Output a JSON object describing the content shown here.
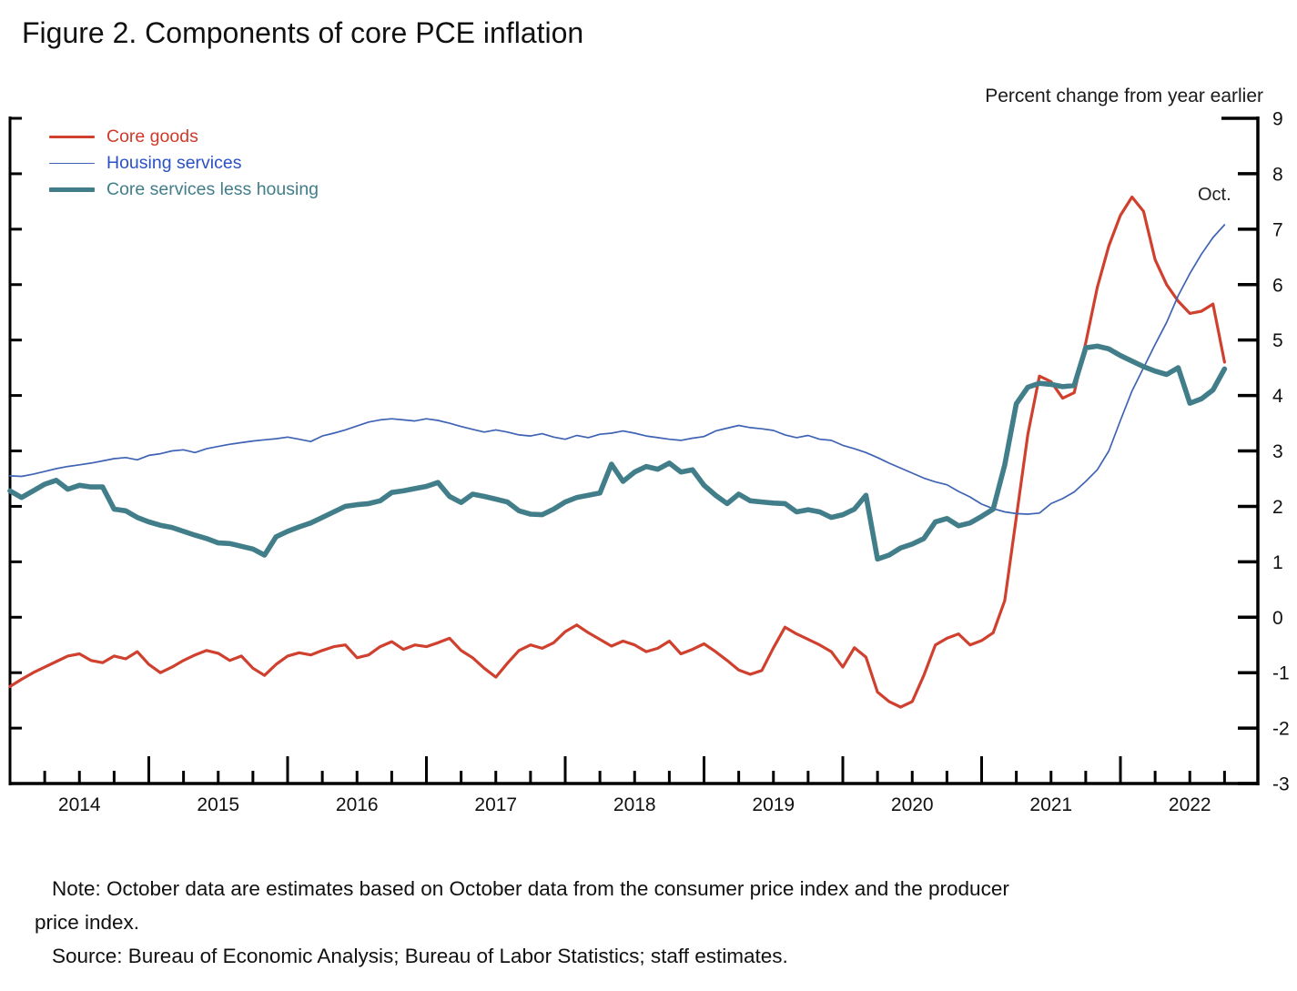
{
  "title": "Figure 2. Components of core PCE inflation",
  "axis_caption": "Percent change from year earlier",
  "annotation": {
    "oct_label": "Oct."
  },
  "legend": {
    "items": [
      {
        "label": "Core goods",
        "text_color": "#cf3a2a",
        "line_color": "#d0402e",
        "line_weight": 3.2
      },
      {
        "label": "Housing services",
        "text_color": "#2b50c4",
        "line_color": "#3e63b4",
        "line_weight": 1.7
      },
      {
        "label": "Core services less housing",
        "text_color": "#417e8a",
        "line_color": "#417e8a",
        "line_weight": 5.6
      }
    ]
  },
  "notes": {
    "note_line1": "Note: October data are estimates based on October data from the consumer price index and the producer",
    "note_line2": "price index.",
    "source_line": "Source: Bureau of Economic Analysis; Bureau of Labor Statistics; staff estimates."
  },
  "chart_data": {
    "type": "line",
    "x_unit": "monthly",
    "x_start": "2014-01",
    "x_end": "2022-10",
    "x_tick_years": [
      2014,
      2015,
      2016,
      2017,
      2018,
      2019,
      2020,
      2021,
      2022
    ],
    "y_ticks": [
      9,
      8,
      7,
      6,
      5,
      4,
      3,
      2,
      1,
      0,
      -1,
      -2,
      -3
    ],
    "ylim": [
      -3,
      9
    ],
    "grid": false,
    "legend_position": "top-left-inside",
    "last_point_label": "Oct.",
    "series": [
      {
        "name": "Core goods",
        "color": "#d0402e",
        "width": 3.2,
        "values": [
          -1.25,
          -1.12,
          -1.0,
          -0.9,
          -0.8,
          -0.7,
          -0.66,
          -0.78,
          -0.82,
          -0.7,
          -0.75,
          -0.62,
          -0.85,
          -1.0,
          -0.9,
          -0.78,
          -0.68,
          -0.6,
          -0.65,
          -0.78,
          -0.7,
          -0.92,
          -1.05,
          -0.85,
          -0.7,
          -0.64,
          -0.68,
          -0.6,
          -0.53,
          -0.5,
          -0.73,
          -0.68,
          -0.53,
          -0.44,
          -0.58,
          -0.5,
          -0.53,
          -0.46,
          -0.38,
          -0.6,
          -0.73,
          -0.92,
          -1.08,
          -0.83,
          -0.6,
          -0.5,
          -0.56,
          -0.46,
          -0.26,
          -0.14,
          -0.28,
          -0.4,
          -0.52,
          -0.43,
          -0.5,
          -0.62,
          -0.56,
          -0.43,
          -0.66,
          -0.58,
          -0.48,
          -0.62,
          -0.78,
          -0.95,
          -1.03,
          -0.96,
          -0.55,
          -0.18,
          -0.3,
          -0.4,
          -0.5,
          -0.62,
          -0.9,
          -0.55,
          -0.72,
          -1.35,
          -1.52,
          -1.62,
          -1.52,
          -1.05,
          -0.5,
          -0.38,
          -0.3,
          -0.5,
          -0.42,
          -0.28,
          0.3,
          1.8,
          3.3,
          4.35,
          4.25,
          3.95,
          4.05,
          4.95,
          5.95,
          6.7,
          7.25,
          7.58,
          7.32,
          6.45,
          6.0,
          5.7,
          5.48,
          5.52,
          5.65,
          4.6
        ]
      },
      {
        "name": "Housing services",
        "color": "#3e63b4",
        "width": 1.7,
        "values": [
          2.55,
          2.54,
          2.58,
          2.63,
          2.68,
          2.72,
          2.75,
          2.78,
          2.82,
          2.86,
          2.88,
          2.84,
          2.92,
          2.95,
          3.0,
          3.02,
          2.97,
          3.04,
          3.08,
          3.12,
          3.15,
          3.18,
          3.2,
          3.22,
          3.25,
          3.21,
          3.17,
          3.27,
          3.32,
          3.38,
          3.45,
          3.52,
          3.56,
          3.58,
          3.56,
          3.54,
          3.58,
          3.55,
          3.5,
          3.44,
          3.39,
          3.34,
          3.38,
          3.34,
          3.29,
          3.27,
          3.31,
          3.25,
          3.21,
          3.28,
          3.24,
          3.3,
          3.32,
          3.36,
          3.32,
          3.27,
          3.24,
          3.21,
          3.19,
          3.23,
          3.26,
          3.36,
          3.41,
          3.46,
          3.42,
          3.4,
          3.37,
          3.29,
          3.24,
          3.28,
          3.21,
          3.19,
          3.1,
          3.04,
          2.97,
          2.88,
          2.78,
          2.69,
          2.6,
          2.51,
          2.44,
          2.39,
          2.27,
          2.17,
          2.04,
          1.96,
          1.9,
          1.87,
          1.86,
          1.88,
          2.05,
          2.14,
          2.26,
          2.45,
          2.66,
          3.0,
          3.55,
          4.08,
          4.5,
          4.92,
          5.32,
          5.8,
          6.2,
          6.55,
          6.85,
          7.08
        ]
      },
      {
        "name": "Core services less housing",
        "color": "#417e8a",
        "width": 5.6,
        "values": [
          2.28,
          2.16,
          2.28,
          2.4,
          2.47,
          2.31,
          2.38,
          2.35,
          2.35,
          1.95,
          1.92,
          1.8,
          1.72,
          1.66,
          1.62,
          1.55,
          1.48,
          1.42,
          1.34,
          1.33,
          1.28,
          1.23,
          1.12,
          1.45,
          1.55,
          1.63,
          1.7,
          1.8,
          1.9,
          2.0,
          2.03,
          2.05,
          2.1,
          2.25,
          2.28,
          2.32,
          2.36,
          2.43,
          2.18,
          2.07,
          2.22,
          2.18,
          2.13,
          2.08,
          1.92,
          1.86,
          1.85,
          1.95,
          2.08,
          2.16,
          2.2,
          2.24,
          2.76,
          2.45,
          2.62,
          2.72,
          2.67,
          2.78,
          2.62,
          2.66,
          2.38,
          2.2,
          2.05,
          2.22,
          2.1,
          2.08,
          2.06,
          2.05,
          1.9,
          1.94,
          1.9,
          1.8,
          1.85,
          1.95,
          2.2,
          1.05,
          1.12,
          1.25,
          1.32,
          1.42,
          1.72,
          1.78,
          1.65,
          1.7,
          1.82,
          1.95,
          2.75,
          3.85,
          4.15,
          4.22,
          4.2,
          4.16,
          4.18,
          4.86,
          4.89,
          4.84,
          4.72,
          4.62,
          4.52,
          4.44,
          4.38,
          4.5,
          3.86,
          3.94,
          4.1,
          4.48
        ]
      }
    ]
  }
}
